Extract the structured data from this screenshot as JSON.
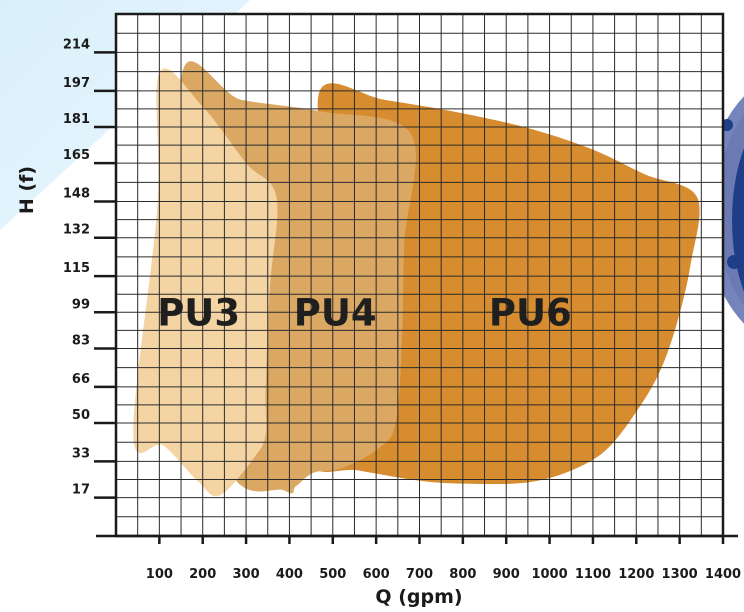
{
  "chart_data": {
    "type": "area",
    "xlabel": "Q (gpm)",
    "ylabel": "H (f)",
    "xlim": [
      0,
      1400
    ],
    "ylim": [
      0,
      231
    ],
    "x_ticks": [
      "100",
      "200",
      "300",
      "400",
      "500",
      "600",
      "700",
      "800",
      "900",
      "1000",
      "1100",
      "1200",
      "1300",
      "1400"
    ],
    "y_ticks": [
      "17",
      "33",
      "50",
      "66",
      "83",
      "99",
      "115",
      "132",
      "148",
      "165",
      "181",
      "197",
      "214"
    ],
    "grid": true,
    "series": [
      {
        "name": "PU6",
        "color": "#d68c2f",
        "label_at": [
          860,
          99
        ],
        "points": [
          [
            470,
            197
          ],
          [
            620,
            193
          ],
          [
            800,
            187
          ],
          [
            960,
            180
          ],
          [
            1100,
            171
          ],
          [
            1220,
            160
          ],
          [
            1340,
            150
          ],
          [
            1325,
            120
          ],
          [
            1295,
            95
          ],
          [
            1255,
            73
          ],
          [
            1200,
            55
          ],
          [
            1130,
            38
          ],
          [
            1050,
            29
          ],
          [
            960,
            24
          ],
          [
            860,
            23
          ],
          [
            720,
            24
          ],
          [
            560,
            29
          ],
          [
            450,
            33
          ],
          [
            480,
            80
          ],
          [
            500,
            140
          ],
          [
            470,
            197
          ]
        ]
      },
      {
        "name": "PU4",
        "color": "#dba864",
        "label_at": [
          410,
          99
        ],
        "points": [
          [
            150,
            200
          ],
          [
            290,
            193
          ],
          [
            470,
            188
          ],
          [
            680,
            178
          ],
          [
            665,
            130
          ],
          [
            660,
            90
          ],
          [
            645,
            50
          ],
          [
            600,
            38
          ],
          [
            520,
            30
          ],
          [
            455,
            28
          ],
          [
            415,
            22
          ],
          [
            390,
            20
          ],
          [
            240,
            40
          ],
          [
            150,
            200
          ]
        ]
      },
      {
        "name": "PU3",
        "color": "#f5d4a4",
        "label_at": [
          95,
          99
        ],
        "points": [
          [
            100,
            205
          ],
          [
            200,
            190
          ],
          [
            300,
            165
          ],
          [
            370,
            150
          ],
          [
            355,
            110
          ],
          [
            345,
            65
          ],
          [
            345,
            45
          ],
          [
            320,
            35
          ],
          [
            240,
            18
          ],
          [
            190,
            24
          ],
          [
            110,
            40
          ],
          [
            40,
            45
          ],
          [
            95,
            145
          ],
          [
            100,
            205
          ]
        ]
      }
    ]
  },
  "colors": {
    "background_wash": "#cfe9f7",
    "flange_disc": "#6e7db3",
    "flange_hub": "#1c3f86",
    "grid": "#2b2b2b"
  }
}
